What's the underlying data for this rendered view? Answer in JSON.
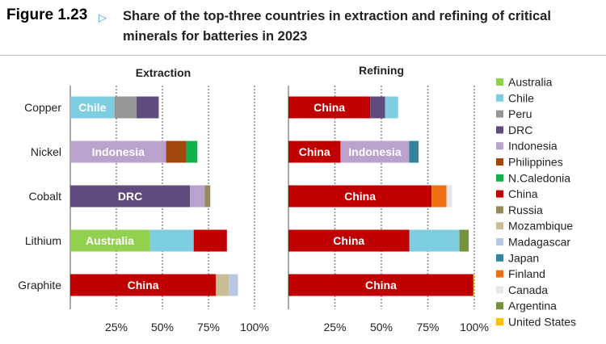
{
  "header": {
    "figure": "Figure 1.23",
    "title": "Share of the top-three countries in extraction and refining of critical minerals for batteries in 2023"
  },
  "colors": {
    "Australia": "#92d050",
    "Chile": "#7ecde0",
    "Peru": "#969696",
    "DRC": "#5f4b7e",
    "Indonesia": "#b9a3cc",
    "Philippines": "#a0480e",
    "N.Caledonia": "#12b04c",
    "China": "#c00000",
    "Russia": "#968a5a",
    "Mozambique": "#c9bd98",
    "Madagascar": "#b8c8e2",
    "Japan": "#31849b",
    "Finland": "#ee7011",
    "Canada": "#e6e6e6",
    "Argentina": "#76923c",
    "United States": "#ffc000"
  },
  "chart_data": {
    "type": "bar",
    "stacked": true,
    "orientation": "horizontal",
    "categories": [
      "Copper",
      "Nickel",
      "Cobalt",
      "Lithium",
      "Graphite"
    ],
    "xticks": [
      "25%",
      "50%",
      "75%",
      "100%"
    ],
    "xlim": [
      0,
      100
    ],
    "legend": [
      "Australia",
      "Chile",
      "Peru",
      "DRC",
      "Indonesia",
      "Philippines",
      "N.Caledonia",
      "China",
      "Russia",
      "Mozambique",
      "Madagascar",
      "Japan",
      "Finland",
      "Canada",
      "Argentina",
      "United States"
    ],
    "legend_position": "right",
    "panels": [
      {
        "title": "Extraction",
        "rows": [
          [
            {
              "country": "Chile",
              "value": 24,
              "label": "Chile"
            },
            {
              "country": "Peru",
              "value": 12
            },
            {
              "country": "DRC",
              "value": 12
            }
          ],
          [
            {
              "country": "Indonesia",
              "value": 52,
              "label": "Indonesia"
            },
            {
              "country": "Philippines",
              "value": 11
            },
            {
              "country": "N.Caledonia",
              "value": 6
            }
          ],
          [
            {
              "country": "DRC",
              "value": 65,
              "label": "DRC"
            },
            {
              "country": "Indonesia",
              "value": 8
            },
            {
              "country": "Russia",
              "value": 3
            }
          ],
          [
            {
              "country": "Australia",
              "value": 43,
              "label": "Australia"
            },
            {
              "country": "Chile",
              "value": 24
            },
            {
              "country": "China",
              "value": 18
            }
          ],
          [
            {
              "country": "China",
              "value": 79,
              "label": "China"
            },
            {
              "country": "Mozambique",
              "value": 7
            },
            {
              "country": "Madagascar",
              "value": 5
            }
          ]
        ]
      },
      {
        "title": "Refining",
        "rows": [
          [
            {
              "country": "China",
              "value": 44,
              "label": "China"
            },
            {
              "country": "DRC",
              "value": 8
            },
            {
              "country": "Chile",
              "value": 7
            }
          ],
          [
            {
              "country": "China",
              "value": 28,
              "label": "China"
            },
            {
              "country": "Indonesia",
              "value": 37,
              "label": "Indonesia"
            },
            {
              "country": "Japan",
              "value": 5
            }
          ],
          [
            {
              "country": "China",
              "value": 77,
              "label": "China"
            },
            {
              "country": "Finland",
              "value": 8
            },
            {
              "country": "Canada",
              "value": 3
            }
          ],
          [
            {
              "country": "China",
              "value": 65,
              "label": "China"
            },
            {
              "country": "Chile",
              "value": 27
            },
            {
              "country": "Argentina",
              "value": 5
            }
          ],
          [
            {
              "country": "China",
              "value": 99.5,
              "label": "China"
            },
            {
              "country": "United States",
              "value": 0.3
            }
          ]
        ]
      }
    ]
  }
}
